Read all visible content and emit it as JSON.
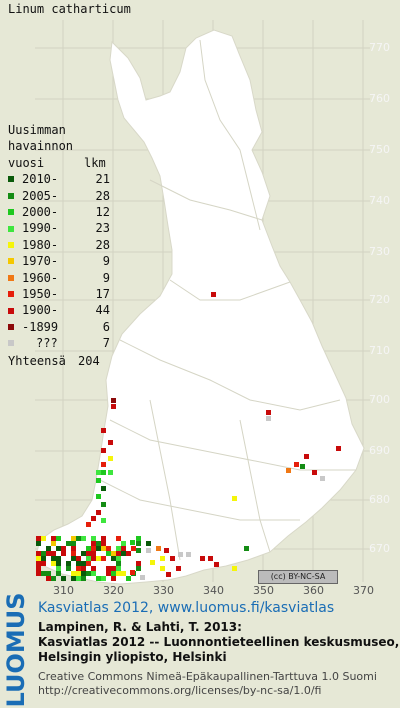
{
  "title": "Linum catharticum",
  "legend": {
    "header1": "Uusimman",
    "header2": "havainnon",
    "col_year": "vuosi",
    "col_count": "lkm",
    "rows": [
      {
        "label": "2010-",
        "count": "21",
        "color": "#0a5a0a"
      },
      {
        "label": "2005-",
        "count": "28",
        "color": "#148c14"
      },
      {
        "label": "2000-",
        "count": "12",
        "color": "#1ec81e"
      },
      {
        "label": "1990-",
        "count": "23",
        "color": "#3ee63e"
      },
      {
        "label": "1980-",
        "count": "28",
        "color": "#f5f50a"
      },
      {
        "label": "1970-",
        "count": "9",
        "color": "#f5c800"
      },
      {
        "label": "1960-",
        "count": "9",
        "color": "#f07814"
      },
      {
        "label": "1950-",
        "count": "17",
        "color": "#e61e0a"
      },
      {
        "label": "1900-",
        "count": "44",
        "color": "#c80a0a"
      },
      {
        "label": "-1899",
        "count": "6",
        "color": "#8c0a0a"
      },
      {
        "label": "???",
        "count": "7",
        "color": "#c8c8c8"
      }
    ],
    "total_label": "Yhteensä",
    "total": "204"
  },
  "y_axis_labels": [
    "770",
    "760",
    "750",
    "740",
    "730",
    "720",
    "710",
    "700",
    "690",
    "680",
    "670"
  ],
  "x_axis_labels": [
    "310",
    "320",
    "330",
    "340",
    "350",
    "360",
    "370"
  ],
  "license_badge": "BY-NC-SA",
  "logo": "LUOMUS",
  "footer": {
    "line1": "Kasviatlas 2012, www.luomus.fi/kasviatlas",
    "line2": "Lampinen, R. & Lahti, T. 2013:",
    "line3": "Kasviatlas 2012 -- Luonnontieteellinen keskusmuseo,",
    "line4": "Helsingin yliopisto, Helsinki",
    "line5": "Creative Commons Nimeä-Epäkaupallinen-Tarttuva 1.0 Suomi",
    "line6": "http://creativecommons.org/licenses/by-nc-sa/1.0/fi"
  },
  "map_colors": {
    "background": "#e6e8d6",
    "land": "#ffffff",
    "grid": "#d2d2c2"
  }
}
